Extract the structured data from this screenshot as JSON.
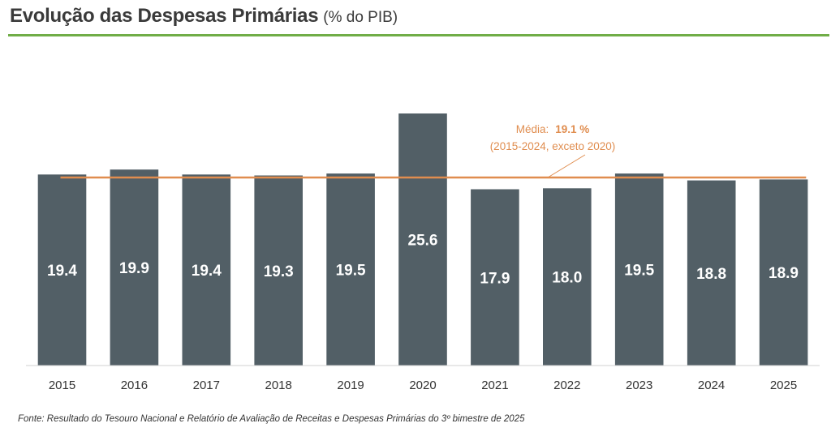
{
  "header": {
    "title": "Evolução das Despesas Primárias",
    "subtitle": "(% do PIB)"
  },
  "chart_data": {
    "type": "bar",
    "categories": [
      "2015",
      "2016",
      "2017",
      "2018",
      "2019",
      "2020",
      "2021",
      "2022",
      "2023",
      "2024",
      "2025"
    ],
    "values": [
      19.4,
      19.9,
      19.4,
      19.3,
      19.5,
      25.6,
      17.9,
      18.0,
      19.5,
      18.8,
      18.9
    ],
    "value_labels": [
      "19.4",
      "19.9",
      "19.4",
      "19.3",
      "19.5",
      "25.6",
      "17.9",
      "18.0",
      "19.5",
      "18.8",
      "18.9"
    ],
    "average": {
      "value": 19.1,
      "label_prefix": "Média:",
      "label_value": "19.1 %",
      "label_note": "(2015-2024, exceto 2020)"
    },
    "ylim": [
      0,
      25.6
    ],
    "grid": false,
    "colors": {
      "bar": "#525f66",
      "average": "#e08d4f",
      "label": "#ffffff",
      "tick": "#333333"
    }
  },
  "footer": {
    "source": "Fonte: Resultado do Tesouro Nacional e Relatório de Avaliação de Receitas e Despesas Primárias do 3º bimestre de 2025"
  }
}
